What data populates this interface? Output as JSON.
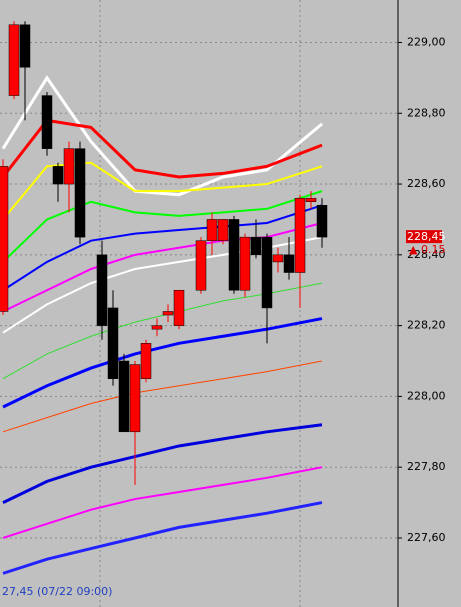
{
  "chart_data": {
    "type": "candlestick",
    "ylim": [
      227.405,
      229.12
    ],
    "yticks": [
      {
        "value": 229.0,
        "label": "229,00"
      },
      {
        "value": 228.8,
        "label": "228,80"
      },
      {
        "value": 228.6,
        "label": "228,60"
      },
      {
        "value": 228.4,
        "label": "228,40"
      },
      {
        "value": 228.2,
        "label": "228,20"
      },
      {
        "value": 228.0,
        "label": "228,00"
      },
      {
        "value": 227.8,
        "label": "227,80"
      },
      {
        "value": 227.6,
        "label": "227,60"
      }
    ],
    "grid": true,
    "up_color": "#ff0000",
    "down_color": "#000000",
    "open": [
      228.24,
      228.85,
      229.05,
      null,
      228.85,
      228.65,
      228.6,
      228.7,
      null,
      228.4,
      228.25,
      228.1,
      227.9,
      228.05,
      228.19,
      228.23,
      228.2,
      null,
      228.3,
      228.44,
      228.44,
      228.5,
      228.3,
      228.45,
      228.45,
      228.38,
      228.4,
      228.35,
      228.55,
      228.54
    ],
    "high": [
      228.67,
      229.06,
      229.06,
      null,
      228.86,
      228.66,
      228.72,
      228.72,
      null,
      228.44,
      228.3,
      228.12,
      228.1,
      228.16,
      228.22,
      228.26,
      228.3,
      null,
      228.45,
      228.52,
      228.5,
      228.51,
      228.46,
      228.5,
      228.46,
      228.42,
      228.45,
      228.57,
      228.58,
      228.56
    ],
    "low": [
      228.23,
      228.84,
      228.78,
      null,
      228.68,
      228.55,
      228.52,
      228.43,
      null,
      228.16,
      228.03,
      227.9,
      227.75,
      228.04,
      228.17,
      228.21,
      228.19,
      null,
      228.29,
      228.4,
      228.43,
      228.29,
      228.28,
      228.39,
      228.15,
      228.35,
      228.33,
      228.25,
      228.53,
      228.42
    ],
    "close": [
      228.65,
      229.05,
      228.93,
      null,
      228.7,
      228.6,
      228.7,
      228.45,
      null,
      228.2,
      228.05,
      227.9,
      228.09,
      228.15,
      228.2,
      228.24,
      228.3,
      null,
      228.44,
      228.5,
      228.5,
      228.3,
      228.45,
      228.4,
      228.25,
      228.4,
      228.35,
      228.56,
      228.56,
      228.45
    ],
    "lines": {
      "x": [
        0,
        4,
        8,
        12,
        16,
        20,
        24,
        29
      ],
      "series": [
        {
          "color": "#ffffff",
          "width": 3,
          "values": [
            228.7,
            228.9,
            228.72,
            228.58,
            228.57,
            228.62,
            228.64,
            228.77
          ]
        },
        {
          "color": "#ff0000",
          "width": 3,
          "values": [
            228.62,
            228.78,
            228.76,
            228.64,
            228.62,
            228.63,
            228.65,
            228.71
          ]
        },
        {
          "color": "#ffff00",
          "width": 2,
          "values": [
            228.5,
            228.65,
            228.66,
            228.58,
            228.58,
            228.59,
            228.6,
            228.65
          ]
        },
        {
          "color": "#00ff00",
          "width": 2,
          "values": [
            228.38,
            228.5,
            228.55,
            228.52,
            228.51,
            228.52,
            228.53,
            228.58
          ]
        },
        {
          "color": "#0000ff",
          "width": 2,
          "values": [
            228.3,
            228.38,
            228.44,
            228.46,
            228.47,
            228.48,
            228.49,
            228.54
          ]
        },
        {
          "color": "#ff00ff",
          "width": 2,
          "values": [
            228.24,
            228.3,
            228.36,
            228.4,
            228.42,
            228.44,
            228.45,
            228.49
          ]
        },
        {
          "color": "#ffffff",
          "width": 2,
          "values": [
            228.18,
            228.26,
            228.32,
            228.36,
            228.38,
            228.4,
            228.42,
            228.45
          ]
        },
        {
          "color": "#33dd33",
          "width": 1,
          "values": [
            228.05,
            228.12,
            228.17,
            228.21,
            228.24,
            228.27,
            228.29,
            228.32
          ]
        },
        {
          "color": "#0000ff",
          "width": 3,
          "values": [
            227.97,
            228.03,
            228.08,
            228.12,
            228.15,
            228.17,
            228.19,
            228.22
          ]
        },
        {
          "color": "#ff4400",
          "width": 1,
          "values": [
            227.9,
            227.94,
            227.98,
            228.01,
            228.03,
            228.05,
            228.07,
            228.1
          ]
        },
        {
          "color": "#0000dd",
          "width": 3,
          "values": [
            227.7,
            227.76,
            227.8,
            227.83,
            227.86,
            227.88,
            227.9,
            227.92
          ]
        },
        {
          "color": "#ff00ff",
          "width": 2,
          "values": [
            227.6,
            227.64,
            227.68,
            227.71,
            227.73,
            227.75,
            227.77,
            227.8
          ]
        },
        {
          "color": "#2222ff",
          "width": 3,
          "values": [
            227.5,
            227.54,
            227.57,
            227.6,
            227.63,
            227.65,
            227.67,
            227.7
          ]
        }
      ]
    },
    "last_price": {
      "value": 228.45,
      "label": "228,45"
    },
    "change_label": "▲ 0.15",
    "footer": "27,45 (07/22 09:00)"
  }
}
